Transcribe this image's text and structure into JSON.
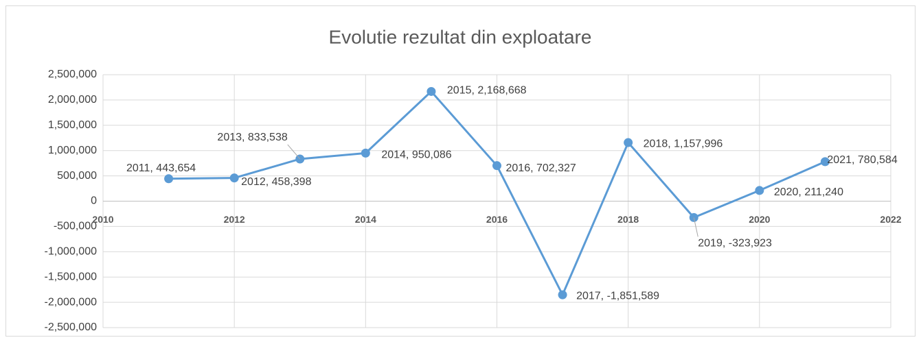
{
  "chart_data": {
    "type": "scatter-line",
    "title": "Evolutie  rezultat din exploatare",
    "x": [
      2011,
      2012,
      2013,
      2014,
      2015,
      2016,
      2017,
      2018,
      2019,
      2020,
      2021
    ],
    "series": [
      {
        "color": "#5b9bd5",
        "values": [
          443654,
          458398,
          833538,
          950086,
          2168668,
          702327,
          -1851589,
          1157996,
          -323923,
          211240,
          780584
        ],
        "value_labels": [
          "2011, 443,654",
          "2012, 458,398",
          "2013, 833,538",
          "2014, 950,086",
          "2015, 2,168,668",
          "2016, 702,327",
          "2017, -1,851,589",
          "2018, 1,157,996",
          "2019, -323,923",
          "2020, 211,240",
          "2021, 780,584"
        ]
      }
    ],
    "xlim": [
      2010,
      2022
    ],
    "xticks": [
      2010,
      2012,
      2014,
      2016,
      2018,
      2020,
      2022
    ],
    "ylim": [
      -2500000,
      2500000
    ],
    "yticks": [
      {
        "value": -2500000,
        "label": "-2,500,000"
      },
      {
        "value": -2000000,
        "label": "-2,000,000"
      },
      {
        "value": -1500000,
        "label": "-1,500,000"
      },
      {
        "value": -1000000,
        "label": "-1,000,000"
      },
      {
        "value": -500000,
        "label": "-500,000"
      },
      0,
      {
        "value": 500000,
        "label": "500,000"
      },
      {
        "value": 1000000,
        "label": "1,000,000"
      },
      {
        "value": 1500000,
        "label": "1,500,000"
      },
      {
        "value": 2000000,
        "label": "2,000,000"
      },
      {
        "value": 2500000,
        "label": "2,500,000"
      }
    ],
    "grid": true
  }
}
